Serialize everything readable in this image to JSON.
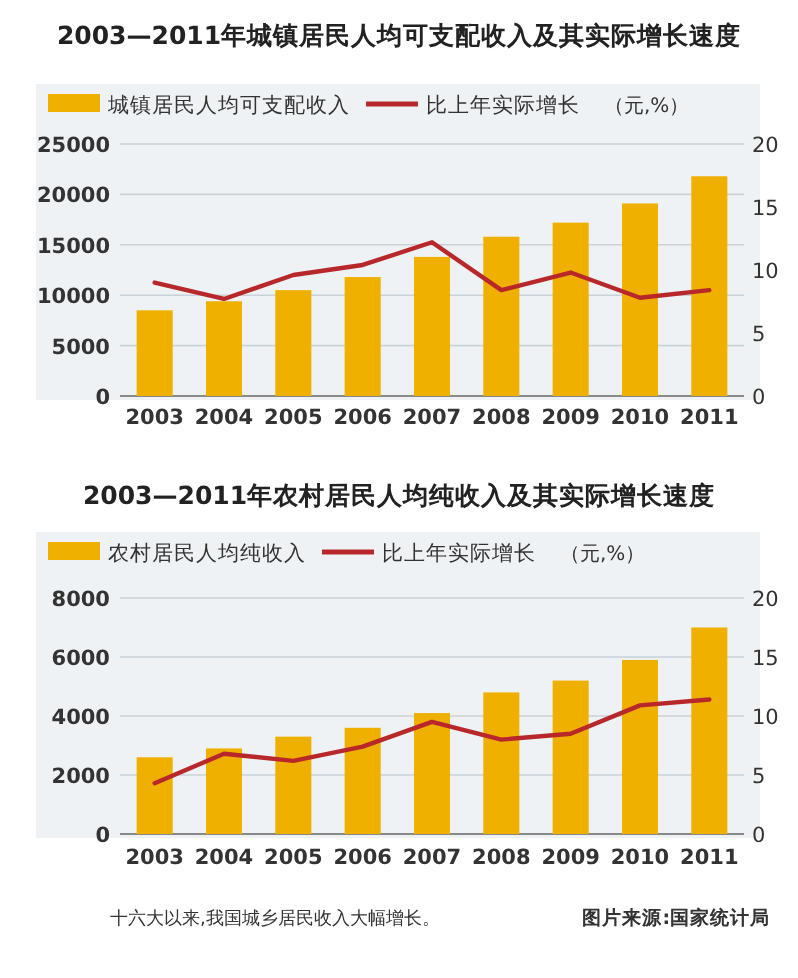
{
  "chart_data": [
    {
      "type": "bar",
      "title": "2003—2011年城镇居民人均可支配收入及其实际增长速度",
      "categories": [
        "2003",
        "2004",
        "2005",
        "2006",
        "2007",
        "2008",
        "2009",
        "2010",
        "2011"
      ],
      "series": [
        {
          "name": "城镇居民人均可支配收入",
          "color": "#f0b000",
          "values": [
            8500,
            9400,
            10500,
            11800,
            13800,
            15800,
            17200,
            19100,
            21800
          ]
        },
        {
          "name": "比上年实际增长",
          "type": "line",
          "axis": "y2",
          "color": "#b8282a",
          "values": [
            9.0,
            7.7,
            9.6,
            10.4,
            12.2,
            8.4,
            9.8,
            7.8,
            8.4
          ]
        }
      ],
      "annotations": [
        "（元,%）"
      ],
      "ylim": [
        0,
        25000
      ],
      "yticks": [
        0,
        5000,
        10000,
        15000,
        20000,
        25000
      ],
      "y2lim": [
        0,
        20
      ],
      "y2ticks": [
        0,
        5,
        10,
        15,
        20
      ],
      "grid": "y",
      "legend": "top left",
      "marker": "none"
    },
    {
      "type": "bar",
      "title": "2003—2011年农村居民人均纯收入及其实际增长速度",
      "categories": [
        "2003",
        "2004",
        "2005",
        "2006",
        "2007",
        "2008",
        "2009",
        "2010",
        "2011"
      ],
      "series": [
        {
          "name": "农村居民人均纯收入",
          "color": "#f0b000",
          "values": [
            2600,
            2900,
            3300,
            3600,
            4100,
            4800,
            5200,
            5900,
            7000
          ]
        },
        {
          "name": "比上年实际增长",
          "type": "line",
          "axis": "y2",
          "color": "#b8282a",
          "values": [
            4.3,
            6.8,
            6.2,
            7.4,
            9.5,
            8.0,
            8.5,
            10.9,
            11.4
          ]
        }
      ],
      "annotations": [
        "（元,%）",
        "十六大以来,我国城乡居民收入大幅增长。",
        "图片来源:国家统计局"
      ],
      "ylim": [
        0,
        8000
      ],
      "yticks": [
        0,
        2000,
        4000,
        6000,
        8000
      ],
      "y2lim": [
        0,
        20
      ],
      "y2ticks": [
        0,
        5,
        10,
        15,
        20
      ],
      "grid": "y",
      "legend": "top left",
      "marker": "none"
    }
  ]
}
